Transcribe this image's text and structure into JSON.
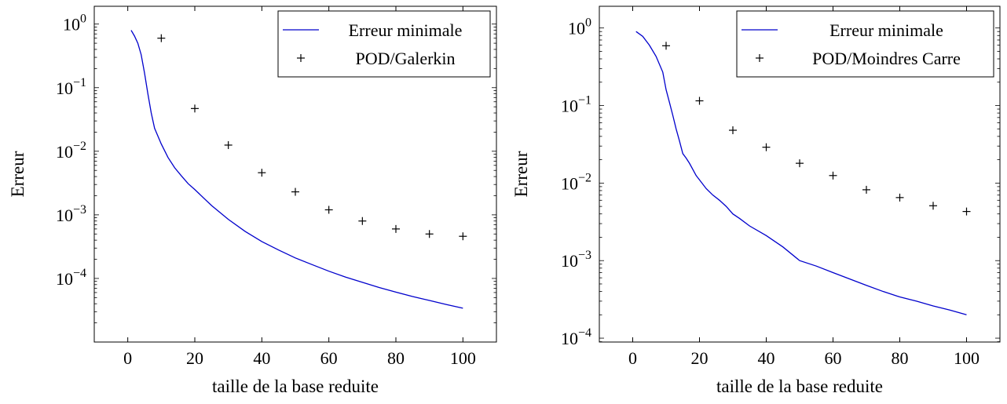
{
  "chart_data": [
    {
      "type": "line",
      "title": "",
      "xlabel": "taille de la base reduite",
      "ylabel": "Erreur",
      "xlim": [
        -10,
        110
      ],
      "ylog": true,
      "ylim_exp": [
        -5,
        0.28
      ],
      "xticks": [
        0,
        20,
        40,
        60,
        80,
        100
      ],
      "yticks": [
        {
          "exp": -4,
          "label": "10",
          "sup": "−4"
        },
        {
          "exp": -3,
          "label": "10",
          "sup": "−3"
        },
        {
          "exp": -2,
          "label": "10",
          "sup": "−2"
        },
        {
          "exp": -1,
          "label": "10",
          "sup": "−1"
        },
        {
          "exp": 0,
          "label": "10",
          "sup": "0"
        }
      ],
      "legend_position": "top-right",
      "grid": false,
      "series": [
        {
          "name": "Erreur minimale",
          "style": "line",
          "color": "#0000cc",
          "x": [
            1,
            2,
            3,
            4,
            5,
            6,
            7,
            8,
            10,
            12,
            14,
            16,
            18,
            20,
            25,
            30,
            35,
            40,
            45,
            50,
            55,
            60,
            65,
            70,
            75,
            80,
            85,
            90,
            95,
            100
          ],
          "y": [
            0.8,
            0.65,
            0.5,
            0.33,
            0.17,
            0.08,
            0.04,
            0.023,
            0.013,
            0.008,
            0.0055,
            0.0041,
            0.0031,
            0.0025,
            0.0014,
            0.00085,
            0.00055,
            0.00038,
            0.00028,
            0.00021,
            0.000165,
            0.00013,
            0.000105,
            8.7e-05,
            7.2e-05,
            6.1e-05,
            5.2e-05,
            4.5e-05,
            3.9e-05,
            3.4e-05
          ]
        },
        {
          "name": "POD/Galerkin",
          "style": "marker",
          "marker": "+",
          "color": "#000000",
          "x": [
            10,
            20,
            30,
            40,
            50,
            60,
            70,
            80,
            90,
            100
          ],
          "y": [
            0.6,
            0.047,
            0.0125,
            0.0046,
            0.0023,
            0.0012,
            0.0008,
            0.0006,
            0.0005,
            0.00046
          ]
        }
      ]
    },
    {
      "type": "line",
      "title": "",
      "xlabel": "taille de la base reduite",
      "ylabel": "Erreur",
      "xlim": [
        -10,
        110
      ],
      "ylog": true,
      "ylim_exp": [
        -4.05,
        0.28
      ],
      "xticks": [
        0,
        20,
        40,
        60,
        80,
        100
      ],
      "yticks": [
        {
          "exp": -4,
          "label": "10",
          "sup": "−4"
        },
        {
          "exp": -3,
          "label": "10",
          "sup": "−3"
        },
        {
          "exp": -2,
          "label": "10",
          "sup": "−2"
        },
        {
          "exp": -1,
          "label": "10",
          "sup": "−1"
        },
        {
          "exp": 0,
          "label": "10",
          "sup": "0"
        }
      ],
      "legend_position": "top-right",
      "grid": false,
      "series": [
        {
          "name": "Erreur minimale",
          "style": "line",
          "color": "#0000cc",
          "x": [
            1,
            3,
            5,
            7,
            9,
            10,
            11,
            12,
            13,
            14,
            15,
            16,
            17,
            18,
            19,
            20,
            22,
            24,
            26,
            28,
            30,
            32,
            35,
            40,
            45,
            50,
            55,
            60,
            65,
            70,
            75,
            80,
            85,
            90,
            95,
            100
          ],
          "y": [
            0.9,
            0.78,
            0.6,
            0.43,
            0.27,
            0.16,
            0.11,
            0.075,
            0.05,
            0.035,
            0.024,
            0.021,
            0.018,
            0.015,
            0.0125,
            0.011,
            0.0085,
            0.007,
            0.006,
            0.005,
            0.004,
            0.0035,
            0.0028,
            0.0021,
            0.0015,
            0.001,
            0.00085,
            0.0007,
            0.00058,
            0.00048,
            0.0004,
            0.00034,
            0.0003,
            0.00026,
            0.00023,
            0.0002
          ]
        },
        {
          "name": "POD/Moindres Carre",
          "style": "marker",
          "marker": "+",
          "color": "#000000",
          "x": [
            10,
            20,
            30,
            40,
            50,
            60,
            70,
            80,
            90,
            100
          ],
          "y": [
            0.59,
            0.115,
            0.048,
            0.029,
            0.018,
            0.0125,
            0.0082,
            0.0065,
            0.0051,
            0.0043
          ]
        }
      ]
    }
  ]
}
